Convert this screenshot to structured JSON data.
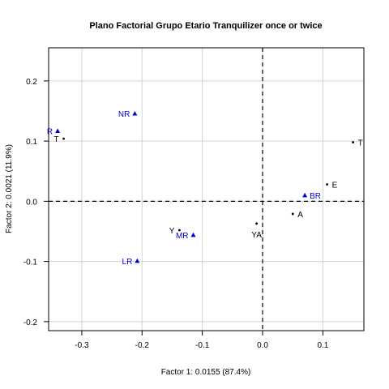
{
  "chart_data": {
    "type": "scatter",
    "title": "Plano Factorial Grupo Etario Tranquilizer once or twice",
    "xlabel": "Factor 1: 0.0155 (87.4%)",
    "ylabel": "Factor 2: 0.0021 (11.9%)",
    "xlim": [
      -0.355,
      0.168
    ],
    "ylim": [
      -0.215,
      0.255
    ],
    "x_ticks": [
      -0.3,
      -0.2,
      -0.1,
      0.0,
      0.1
    ],
    "x_tick_labels": [
      "-0.3",
      "-0.2",
      "-0.1",
      "0.0",
      "0.1"
    ],
    "y_ticks": [
      -0.2,
      -0.1,
      0.0,
      0.1,
      0.2
    ],
    "y_tick_labels": [
      "-0.2",
      "-0.1",
      "0.0",
      "0.1",
      "0.2"
    ],
    "grid": true,
    "reference_lines": {
      "x": 0,
      "y": 0,
      "style": "dashed"
    },
    "series": [
      {
        "marker": "dot",
        "color": "#000000",
        "points": [
          {
            "label": "T",
            "x": -0.33,
            "y": 0.104,
            "label_side": "left"
          },
          {
            "label": "T",
            "x": 0.15,
            "y": 0.098,
            "label_side": "right"
          },
          {
            "label": "E",
            "x": 0.107,
            "y": 0.028,
            "label_side": "right"
          },
          {
            "label": "A",
            "x": 0.05,
            "y": -0.021,
            "label_side": "right"
          },
          {
            "label": "Y",
            "x": -0.138,
            "y": -0.048,
            "label_side": "left"
          },
          {
            "label": "YA",
            "x": -0.01,
            "y": -0.037,
            "label_side": "below"
          }
        ]
      },
      {
        "marker": "triangle",
        "color": "#0000cc",
        "points": [
          {
            "label": "R",
            "x": -0.34,
            "y": 0.117,
            "label_side": "left"
          },
          {
            "label": "NR",
            "x": -0.212,
            "y": 0.146,
            "label_side": "left"
          },
          {
            "label": "BR",
            "x": 0.07,
            "y": 0.01,
            "label_side": "right"
          },
          {
            "label": "MR",
            "x": -0.115,
            "y": -0.056,
            "label_side": "left"
          },
          {
            "label": "LR",
            "x": -0.208,
            "y": -0.099,
            "label_side": "left"
          }
        ]
      }
    ]
  }
}
